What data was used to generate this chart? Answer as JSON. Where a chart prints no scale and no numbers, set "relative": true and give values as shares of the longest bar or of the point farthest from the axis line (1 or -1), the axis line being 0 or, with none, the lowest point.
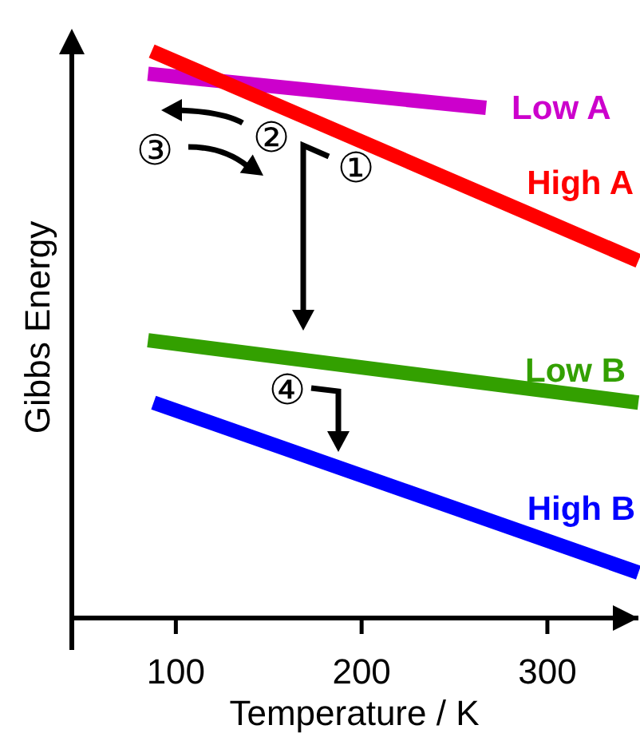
{
  "chart_data": {
    "type": "line",
    "relative": true,
    "xlabel": "Temperature / K",
    "ylabel": "Gibbs Energy",
    "xlim": [
      44,
      349
    ],
    "xticks": [
      100,
      200,
      300
    ],
    "grid": false,
    "marker": "none",
    "line_style": "solid",
    "series": [
      {
        "name": "Low A",
        "color": "#cc00cc",
        "x": [
          85,
          267
        ],
        "values": [
          0.96,
          0.9
        ]
      },
      {
        "name": "High A",
        "color": "#ff0000",
        "x": [
          87,
          349
        ],
        "values": [
          1,
          0.63
        ]
      },
      {
        "name": "Low B",
        "color": "#33a000",
        "x": [
          85,
          349
        ],
        "values": [
          0.49,
          0.38
        ]
      },
      {
        "name": "High B",
        "color": "#0000ff",
        "x": [
          88,
          349
        ],
        "values": [
          0.38,
          0.08
        ]
      }
    ],
    "annotations": [
      "①",
      "②",
      "③",
      "④"
    ]
  }
}
